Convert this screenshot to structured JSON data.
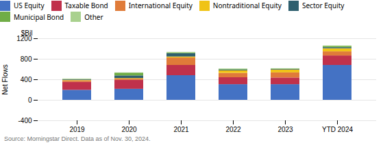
{
  "chart_data": {
    "type": "bar",
    "stacked": true,
    "categories": [
      "2019",
      "2020",
      "2021",
      "2022",
      "2023",
      "YTD 2024"
    ],
    "series": [
      {
        "name": "US Equity",
        "color": "#4472c4",
        "values": [
          195,
          215,
          480,
          305,
          305,
          680
        ]
      },
      {
        "name": "Taxable Bond",
        "color": "#c0314b",
        "values": [
          155,
          175,
          200,
          135,
          130,
          185
        ]
      },
      {
        "name": "International Equity",
        "color": "#e07b39",
        "values": [
          30,
          25,
          145,
          85,
          100,
          80
        ]
      },
      {
        "name": "Nontraditional Equity",
        "color": "#f0c315",
        "values": [
          10,
          10,
          20,
          50,
          55,
          60
        ]
      },
      {
        "name": "Sector Equity",
        "color": "#2e5f6e",
        "values": [
          10,
          50,
          65,
          15,
          10,
          20
        ]
      },
      {
        "name": "Municipal Bond",
        "color": "#70ad47",
        "values": [
          5,
          55,
          15,
          10,
          10,
          25
        ]
      },
      {
        "name": "Other",
        "color": "#a9d18e",
        "values": [
          10,
          5,
          10,
          10,
          5,
          10
        ]
      }
    ],
    "ylim": [
      -400,
      1200
    ],
    "yticks": [
      -400,
      0,
      400,
      800,
      1200
    ],
    "ylabel": "Net Flows",
    "annotations": [
      "$Bil"
    ],
    "caption": "Source: Morningstar Direct. Data as of Nov. 30, 2024.",
    "grid": true,
    "legend": "upper left"
  }
}
